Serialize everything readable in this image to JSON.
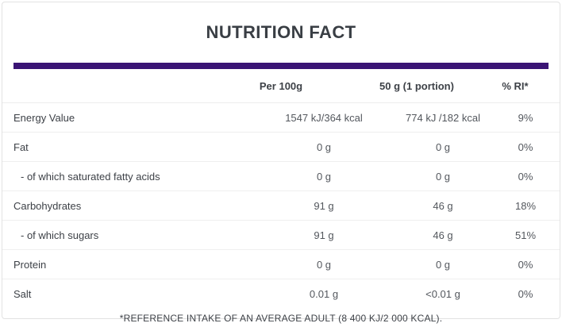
{
  "title": "NUTRITION FACT",
  "accent_color": "#3a1474",
  "table": {
    "columns": [
      "",
      "Per 100g",
      "50 g (1 portion)",
      "% RI*"
    ],
    "rows": [
      {
        "label": "Energy Value",
        "per_100g": "1547 kJ/364 kcal",
        "per_portion": "774 kJ /182 kcal",
        "ri": "9%",
        "indent": false
      },
      {
        "label": "Fat",
        "per_100g": "0 g",
        "per_portion": "0 g",
        "ri": "0%",
        "indent": false
      },
      {
        "label": "- of which saturated fatty acids",
        "per_100g": "0 g",
        "per_portion": "0 g",
        "ri": "0%",
        "indent": true
      },
      {
        "label": "Carbohydrates",
        "per_100g": "91 g",
        "per_portion": "46 g",
        "ri": "18%",
        "indent": false
      },
      {
        "label": "- of which sugars",
        "per_100g": "91 g",
        "per_portion": "46 g",
        "ri": "51%",
        "indent": true
      },
      {
        "label": "Protein",
        "per_100g": "0 g",
        "per_portion": "0 g",
        "ri": "0%",
        "indent": false
      },
      {
        "label": "Salt",
        "per_100g": "0.01 g",
        "per_portion": "<0.01 g",
        "ri": "0%",
        "indent": false
      }
    ]
  },
  "footnote": "*REFERENCE INTAKE OF AN AVERAGE ADULT (8 400 KJ/2 000 KCAL)."
}
